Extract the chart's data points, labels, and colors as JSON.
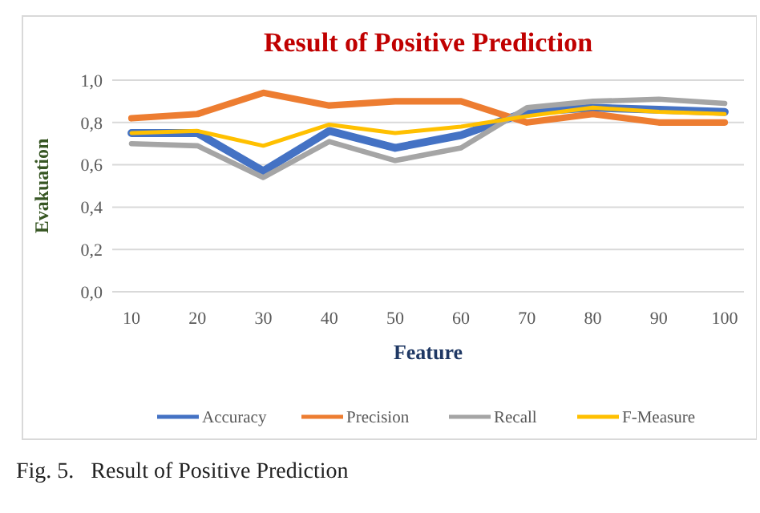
{
  "chart_data": {
    "type": "line",
    "title": "Result of Positive Prediction",
    "xlabel": "Feature",
    "ylabel": "Evakuation",
    "categories": [
      "10",
      "20",
      "30",
      "40",
      "50",
      "60",
      "70",
      "80",
      "90",
      "100"
    ],
    "series": [
      {
        "name": "Accuracy",
        "color": "#4472c4",
        "values": [
          0.75,
          0.75,
          0.57,
          0.76,
          0.68,
          0.74,
          0.85,
          0.87,
          0.86,
          0.85
        ]
      },
      {
        "name": "Precision",
        "color": "#ed7d31",
        "values": [
          0.82,
          0.84,
          0.94,
          0.88,
          0.9,
          0.9,
          0.8,
          0.84,
          0.8,
          0.8
        ]
      },
      {
        "name": "Recall",
        "color": "#a5a5a5",
        "values": [
          0.7,
          0.69,
          0.54,
          0.71,
          0.62,
          0.68,
          0.87,
          0.9,
          0.91,
          0.89
        ]
      },
      {
        "name": "F-Measure",
        "color": "#ffc000",
        "values": [
          0.75,
          0.76,
          0.69,
          0.79,
          0.75,
          0.78,
          0.83,
          0.87,
          0.85,
          0.84
        ]
      }
    ],
    "ylim": [
      0,
      1
    ],
    "yticks": [
      {
        "value": 0,
        "label": "0,0"
      },
      {
        "value": 0.2,
        "label": "0,2"
      },
      {
        "value": 0.4,
        "label": "0,4"
      },
      {
        "value": 0.6,
        "label": "0,6"
      },
      {
        "value": 0.8,
        "label": "0,8"
      },
      {
        "value": 1,
        "label": "1,0"
      }
    ],
    "grid": "y",
    "legend": "bottom",
    "marker": "none",
    "line_style": "solid",
    "annotations": [
      "Fig. 5.   Result of Positive Prediction"
    ]
  }
}
